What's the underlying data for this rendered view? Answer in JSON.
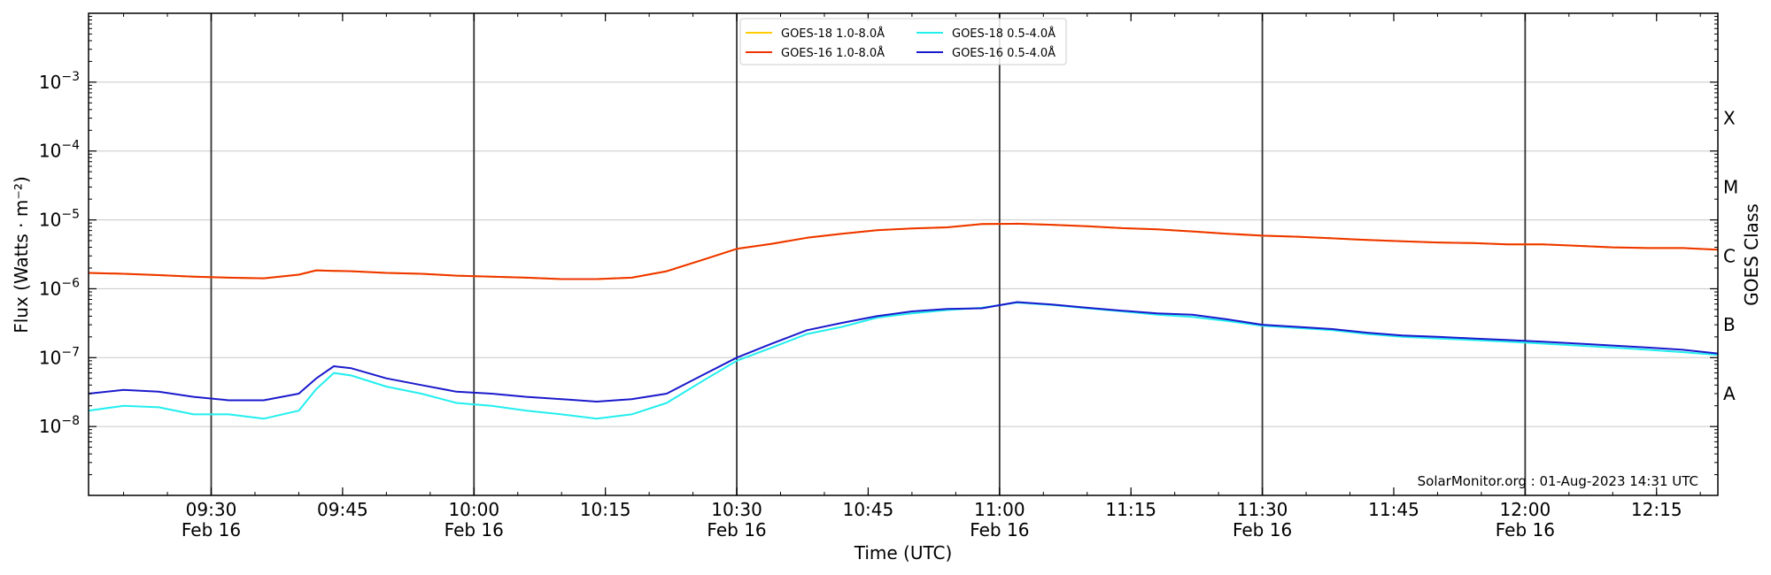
{
  "chart_data": {
    "type": "line",
    "title": "",
    "xlabel": "Time (UTC)",
    "ylabel": "Flux (Watts · m⁻²)",
    "y2label": "GOES Class",
    "yscale": "log",
    "ylim": [
      1e-09,
      0.01
    ],
    "xlim": [
      "09:16",
      "12:22"
    ],
    "grid": "horizontal",
    "legend_location": "upper center",
    "watermark": "SolarMonitor.org : 01-Aug-2023 14:31 UTC",
    "y_ticks": [
      {
        "value": 1e-08,
        "base": "10",
        "exp": "−8"
      },
      {
        "value": 1e-07,
        "base": "10",
        "exp": "−7"
      },
      {
        "value": 1e-06,
        "base": "10",
        "exp": "−6"
      },
      {
        "value": 1e-05,
        "base": "10",
        "exp": "−5"
      },
      {
        "value": 0.0001,
        "base": "10",
        "exp": "−4"
      },
      {
        "value": 0.001,
        "base": "10",
        "exp": "−3"
      }
    ],
    "x_ticks": [
      {
        "time": "09:30",
        "label": "09:30",
        "date": "Feb 16"
      },
      {
        "time": "09:45",
        "label": "09:45",
        "date": ""
      },
      {
        "time": "10:00",
        "label": "10:00",
        "date": "Feb 16"
      },
      {
        "time": "10:15",
        "label": "10:15",
        "date": ""
      },
      {
        "time": "10:30",
        "label": "10:30",
        "date": "Feb 16"
      },
      {
        "time": "10:45",
        "label": "10:45",
        "date": ""
      },
      {
        "time": "11:00",
        "label": "11:00",
        "date": "Feb 16"
      },
      {
        "time": "11:15",
        "label": "11:15",
        "date": ""
      },
      {
        "time": "11:30",
        "label": "11:30",
        "date": "Feb 16"
      },
      {
        "time": "11:45",
        "label": "11:45",
        "date": ""
      },
      {
        "time": "12:00",
        "label": "12:00",
        "date": "Feb 16"
      },
      {
        "time": "12:15",
        "label": "12:15",
        "date": ""
      }
    ],
    "vertical_lines": [
      "09:30",
      "10:00",
      "10:30",
      "11:00",
      "11:30",
      "12:00"
    ],
    "goes_classes": [
      {
        "label": "A",
        "value": 3e-08
      },
      {
        "label": "B",
        "value": 3e-07
      },
      {
        "label": "C",
        "value": 3e-06
      },
      {
        "label": "M",
        "value": 3e-05
      },
      {
        "label": "X",
        "value": 0.0003
      }
    ],
    "x": [
      "09:16",
      "09:20",
      "09:24",
      "09:28",
      "09:32",
      "09:36",
      "09:40",
      "09:42",
      "09:44",
      "09:46",
      "09:50",
      "09:54",
      "09:58",
      "10:02",
      "10:06",
      "10:10",
      "10:14",
      "10:18",
      "10:22",
      "10:26",
      "10:30",
      "10:34",
      "10:38",
      "10:42",
      "10:46",
      "10:50",
      "10:54",
      "10:58",
      "11:02",
      "11:06",
      "11:10",
      "11:14",
      "11:18",
      "11:22",
      "11:26",
      "11:30",
      "11:34",
      "11:38",
      "11:42",
      "11:46",
      "11:50",
      "11:54",
      "11:58",
      "12:02",
      "12:06",
      "12:10",
      "12:14",
      "12:18",
      "12:22"
    ],
    "series": [
      {
        "name": "GOES-18 1.0-8.0Å",
        "color": "#ffcc00",
        "values": [
          1.7e-06,
          1.65e-06,
          1.58e-06,
          1.5e-06,
          1.45e-06,
          1.42e-06,
          1.6e-06,
          1.85e-06,
          1.82e-06,
          1.8e-06,
          1.7e-06,
          1.65e-06,
          1.55e-06,
          1.5e-06,
          1.45e-06,
          1.38e-06,
          1.38e-06,
          1.45e-06,
          1.8e-06,
          2.6e-06,
          3.8e-06,
          4.5e-06,
          5.5e-06,
          6.3e-06,
          7.1e-06,
          7.5e-06,
          7.8e-06,
          8.7e-06,
          8.8e-06,
          8.5e-06,
          8.1e-06,
          7.6e-06,
          7.3e-06,
          6.8e-06,
          6.3e-06,
          5.9e-06,
          5.7e-06,
          5.4e-06,
          5.1e-06,
          4.9e-06,
          4.7e-06,
          4.6e-06,
          4.4e-06,
          4.4e-06,
          4.2e-06,
          4e-06,
          3.9e-06,
          3.9e-06,
          3.7e-06
        ]
      },
      {
        "name": "GOES-16 1.0-8.0Å",
        "color": "#ee3300",
        "values": [
          1.7e-06,
          1.65e-06,
          1.58e-06,
          1.5e-06,
          1.45e-06,
          1.42e-06,
          1.6e-06,
          1.85e-06,
          1.82e-06,
          1.8e-06,
          1.7e-06,
          1.65e-06,
          1.55e-06,
          1.5e-06,
          1.45e-06,
          1.38e-06,
          1.38e-06,
          1.45e-06,
          1.8e-06,
          2.6e-06,
          3.8e-06,
          4.5e-06,
          5.5e-06,
          6.3e-06,
          7.1e-06,
          7.5e-06,
          7.8e-06,
          8.7e-06,
          8.8e-06,
          8.5e-06,
          8.1e-06,
          7.6e-06,
          7.3e-06,
          6.8e-06,
          6.3e-06,
          5.9e-06,
          5.7e-06,
          5.4e-06,
          5.1e-06,
          4.9e-06,
          4.7e-06,
          4.6e-06,
          4.4e-06,
          4.4e-06,
          4.2e-06,
          4e-06,
          3.9e-06,
          3.9e-06,
          3.7e-06
        ]
      },
      {
        "name": "GOES-18 0.5-4.0Å",
        "color": "#22eeee",
        "values": [
          1.7e-08,
          2e-08,
          1.9e-08,
          1.5e-08,
          1.5e-08,
          1.3e-08,
          1.7e-08,
          3.5e-08,
          6e-08,
          5.5e-08,
          3.8e-08,
          3e-08,
          2.2e-08,
          2e-08,
          1.7e-08,
          1.5e-08,
          1.3e-08,
          1.5e-08,
          2.2e-08,
          4.5e-08,
          9e-08,
          1.4e-07,
          2.2e-07,
          2.8e-07,
          3.8e-07,
          4.4e-07,
          4.9e-07,
          5.3e-07,
          6.3e-07,
          5.8e-07,
          5.2e-07,
          4.7e-07,
          4.2e-07,
          3.9e-07,
          3.4e-07,
          2.9e-07,
          2.7e-07,
          2.5e-07,
          2.2e-07,
          2e-07,
          1.9e-07,
          1.8e-07,
          1.7e-07,
          1.6e-07,
          1.5e-07,
          1.4e-07,
          1.3e-07,
          1.2e-07,
          1.1e-07
        ]
      },
      {
        "name": "GOES-16 0.5-4.0Å",
        "color": "#1a1acc",
        "values": [
          3e-08,
          3.4e-08,
          3.2e-08,
          2.7e-08,
          2.4e-08,
          2.4e-08,
          3e-08,
          5e-08,
          7.5e-08,
          7e-08,
          5e-08,
          4e-08,
          3.2e-08,
          3e-08,
          2.7e-08,
          2.5e-08,
          2.3e-08,
          2.5e-08,
          3e-08,
          5.5e-08,
          1e-07,
          1.6e-07,
          2.5e-07,
          3.2e-07,
          4e-07,
          4.7e-07,
          5.1e-07,
          5.2e-07,
          6.4e-07,
          5.9e-07,
          5.3e-07,
          4.8e-07,
          4.4e-07,
          4.2e-07,
          3.6e-07,
          3e-07,
          2.8e-07,
          2.6e-07,
          2.3e-07,
          2.1e-07,
          2e-07,
          1.9e-07,
          1.8e-07,
          1.7e-07,
          1.6e-07,
          1.5e-07,
          1.4e-07,
          1.3e-07,
          1.15e-07
        ]
      }
    ]
  }
}
